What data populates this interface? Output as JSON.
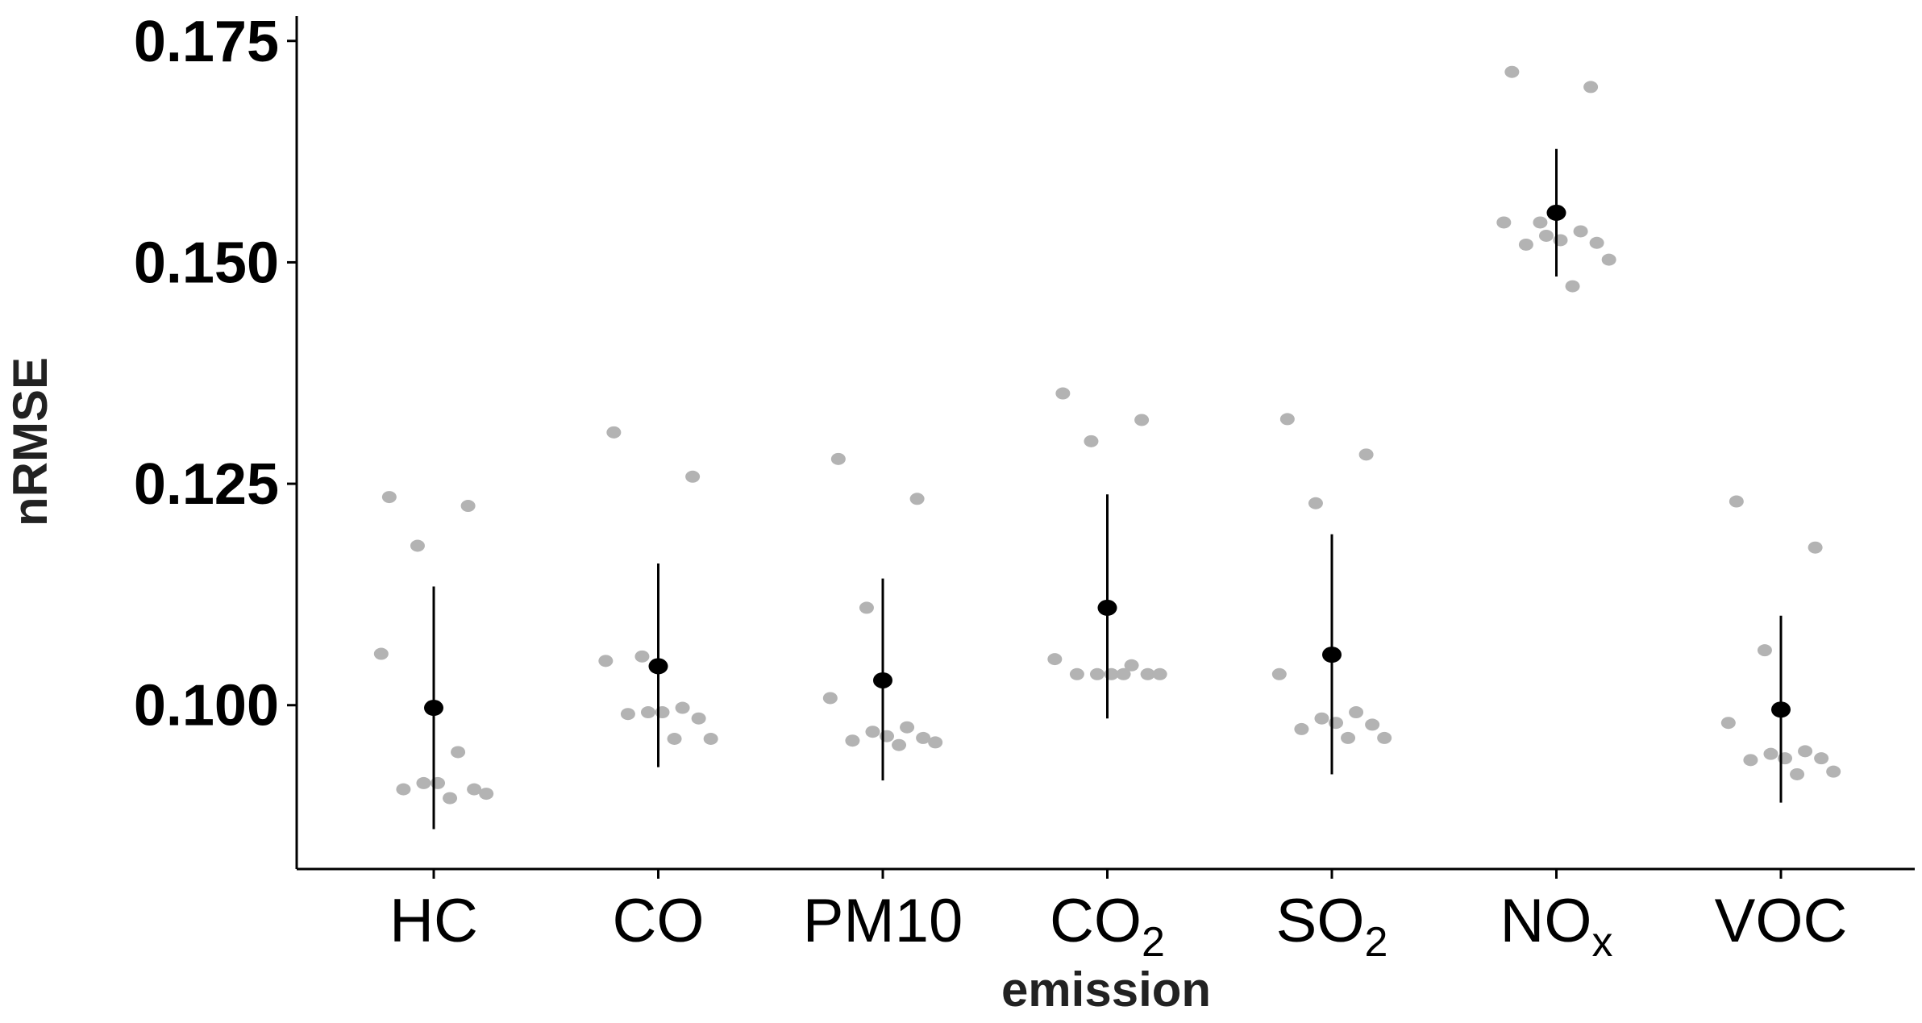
{
  "chart_data": {
    "type": "scatter",
    "xlabel": "emission",
    "ylabel": "nRMSE",
    "ylim": [
      0.0815,
      0.1778
    ],
    "yticks": [
      0.1,
      0.125,
      0.15,
      0.175
    ],
    "ytick_labels": [
      "0.100",
      "0.125",
      "0.150",
      "0.175"
    ],
    "grid": false,
    "legend": "none",
    "colors": {
      "points": "#b3b3b3",
      "summary": "#000000",
      "axis": "#000000"
    },
    "categories": [
      {
        "label": "HC",
        "sub": "",
        "mean": 0.0997,
        "lower": 0.086,
        "upper": 0.1134,
        "points": [
          0.1235,
          0.1225,
          0.118,
          0.1058,
          0.0947,
          0.0912,
          0.0912,
          0.0905,
          0.0905,
          0.09,
          0.0895
        ]
      },
      {
        "label": "CO",
        "sub": "",
        "mean": 0.1044,
        "lower": 0.093,
        "upper": 0.116,
        "points": [
          0.1308,
          0.1258,
          0.1055,
          0.105,
          0.0997,
          0.0992,
          0.0992,
          0.0985,
          0.099,
          0.0962,
          0.0962
        ]
      },
      {
        "label": "PM10",
        "sub": "",
        "mean": 0.1028,
        "lower": 0.0915,
        "upper": 0.1143,
        "points": [
          0.1278,
          0.1233,
          0.111,
          0.1008,
          0.0975,
          0.097,
          0.0965,
          0.0963,
          0.096,
          0.0958,
          0.0955
        ]
      },
      {
        "label": "CO",
        "sub": "2",
        "mean": 0.111,
        "lower": 0.0985,
        "upper": 0.1238,
        "points": [
          0.1352,
          0.1322,
          0.1298,
          0.1052,
          0.1045,
          0.1035,
          0.1035,
          0.1035,
          0.1035,
          0.1035,
          0.1035
        ]
      },
      {
        "label": "SO",
        "sub": "2",
        "mean": 0.1057,
        "lower": 0.0922,
        "upper": 0.1193,
        "points": [
          0.1323,
          0.1283,
          0.1228,
          0.1035,
          0.0992,
          0.0985,
          0.098,
          0.0978,
          0.0973,
          0.0963,
          0.0963
        ]
      },
      {
        "label": "NO",
        "sub": "x",
        "mean": 0.1556,
        "lower": 0.1484,
        "upper": 0.1628,
        "points": [
          0.1715,
          0.1698,
          0.1545,
          0.1545,
          0.1535,
          0.153,
          0.1525,
          0.1522,
          0.152,
          0.1503,
          0.1473
        ]
      },
      {
        "label": "VOC",
        "sub": "",
        "mean": 0.0995,
        "lower": 0.089,
        "upper": 0.1101,
        "points": [
          0.123,
          0.1178,
          0.1062,
          0.098,
          0.0948,
          0.0945,
          0.094,
          0.094,
          0.0938,
          0.0925,
          0.0922
        ]
      }
    ]
  }
}
